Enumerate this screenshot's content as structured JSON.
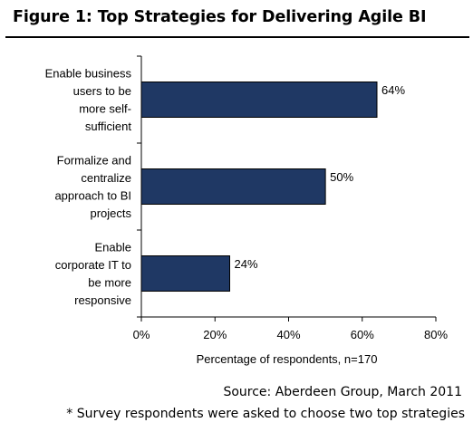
{
  "figure": {
    "title": "Figure 1: Top Strategies for Delivering Agile BI",
    "source": "Source: Aberdeen Group, March 2011",
    "footnote": "* Survey respondents were asked to choose two top strategies"
  },
  "chart_data": {
    "type": "bar",
    "orientation": "horizontal",
    "categories": [
      [
        "Enable business",
        "users to be",
        "more self-",
        "sufficient"
      ],
      [
        "Formalize and",
        "centralize",
        "approach to BI",
        "projects"
      ],
      [
        "Enable",
        "corporate IT to",
        "be more",
        "responsive"
      ]
    ],
    "values": [
      64,
      50,
      24
    ],
    "data_labels": [
      "64%",
      "50%",
      "24%"
    ],
    "xlabel": "Percentage of respondents, n=170",
    "xlim": [
      0,
      80
    ],
    "xticks": [
      "0%",
      "20%",
      "40%",
      "60%",
      "80%"
    ],
    "grid": false,
    "legend": "none",
    "bar_color": "#1f3864"
  }
}
